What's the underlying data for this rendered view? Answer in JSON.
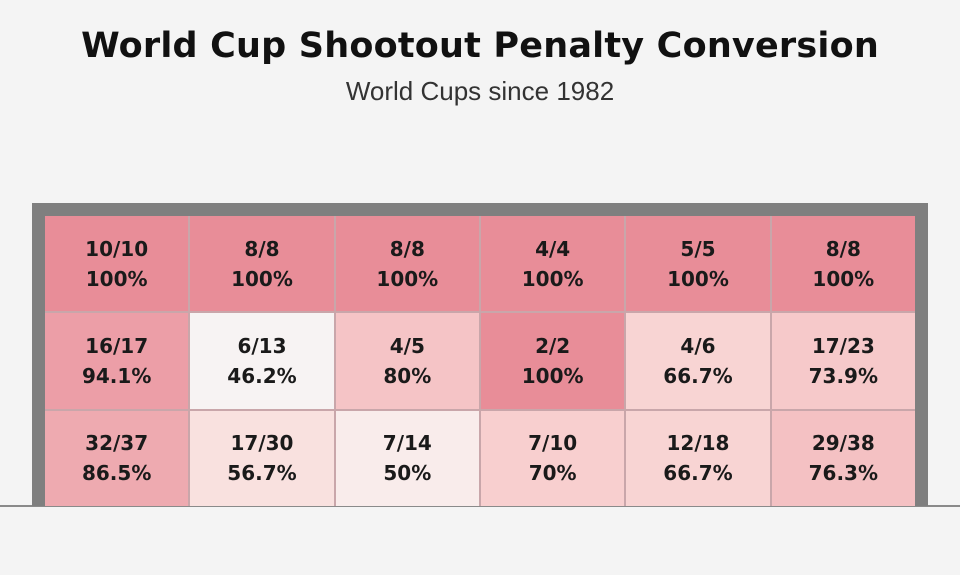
{
  "chart_data": {
    "type": "table",
    "title": "World Cup Shootout Penalty Conversion",
    "subtitle": "World Cups since 1982",
    "rows": [
      [
        {
          "ratio": "10/10",
          "pct": "100%",
          "color": "#e88d98"
        },
        {
          "ratio": "8/8",
          "pct": "100%",
          "color": "#e88d98"
        },
        {
          "ratio": "8/8",
          "pct": "100%",
          "color": "#e88d98"
        },
        {
          "ratio": "4/4",
          "pct": "100%",
          "color": "#e88d98"
        },
        {
          "ratio": "5/5",
          "pct": "100%",
          "color": "#e88d98"
        },
        {
          "ratio": "8/8",
          "pct": "100%",
          "color": "#e88d98"
        }
      ],
      [
        {
          "ratio": "16/17",
          "pct": "94.1%",
          "color": "#ec9ea7"
        },
        {
          "ratio": "6/13",
          "pct": "46.2%",
          "color": "#f7f3f3"
        },
        {
          "ratio": "4/5",
          "pct": "80%",
          "color": "#f5c4c6"
        },
        {
          "ratio": "2/2",
          "pct": "100%",
          "color": "#e88d98"
        },
        {
          "ratio": "4/6",
          "pct": "66.7%",
          "color": "#f8d4d3"
        },
        {
          "ratio": "17/23",
          "pct": "73.9%",
          "color": "#f6c9ca"
        }
      ],
      [
        {
          "ratio": "32/37",
          "pct": "86.5%",
          "color": "#eeaab0"
        },
        {
          "ratio": "17/30",
          "pct": "56.7%",
          "color": "#f9e1df"
        },
        {
          "ratio": "7/14",
          "pct": "50%",
          "color": "#f9eceb"
        },
        {
          "ratio": "7/10",
          "pct": "70%",
          "color": "#f8cfcf"
        },
        {
          "ratio": "12/18",
          "pct": "66.7%",
          "color": "#f8d4d3"
        },
        {
          "ratio": "29/38",
          "pct": "76.3%",
          "color": "#f4c1c3"
        }
      ]
    ]
  }
}
